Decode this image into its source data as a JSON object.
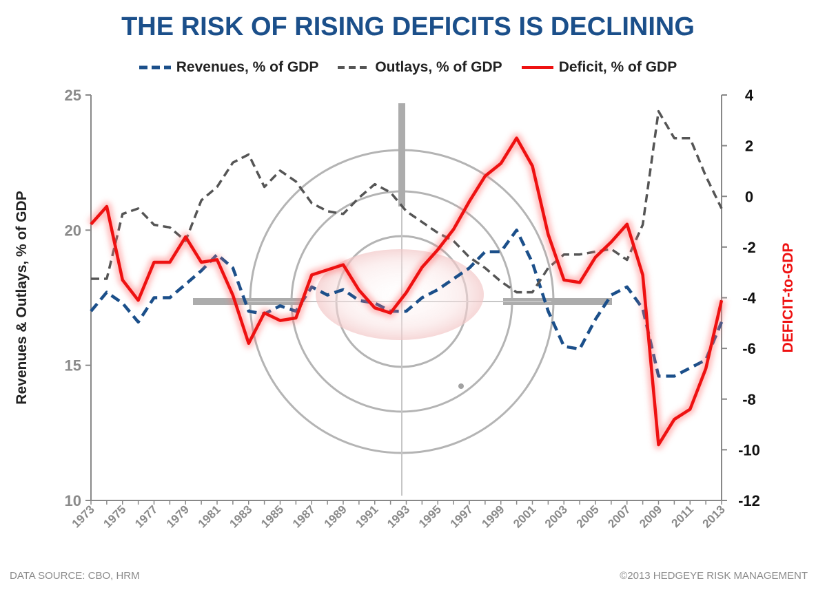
{
  "title": "THE RISK OF RISING DEFICITS IS DECLINING",
  "legend": [
    {
      "label": "Revenues, % of GDP",
      "color": "#1b4f8a",
      "dash": true
    },
    {
      "label": "Outlays, % of GDP",
      "color": "#555555",
      "dash": true
    },
    {
      "label": "Deficit, % of GDP",
      "color": "#ee1111",
      "dash": false
    }
  ],
  "footer": {
    "source": "DATA SOURCE: CBO, HRM",
    "copyright": "©2013 HEDGEYE RISK MANAGEMENT"
  },
  "chart_data": {
    "type": "line",
    "title": "THE RISK OF RISING DEFICITS IS DECLINING",
    "ylabel_left": "Revenues & Outlays, % of GDP",
    "ylabel_right": "DEFICIT-to-GDP",
    "ylim_left": [
      10,
      25
    ],
    "ylim_right": [
      -12,
      4
    ],
    "yticks_left": [
      "25",
      "20",
      "15",
      "10"
    ],
    "yticks_right": [
      "4",
      "2",
      "0",
      "-2",
      "-4",
      "-6",
      "-8",
      "-10",
      "-12"
    ],
    "x": [
      1973,
      1974,
      1975,
      1976,
      1977,
      1978,
      1979,
      1980,
      1981,
      1982,
      1983,
      1984,
      1985,
      1986,
      1987,
      1988,
      1989,
      1990,
      1991,
      1992,
      1993,
      1994,
      1995,
      1996,
      1997,
      1998,
      1999,
      2000,
      2001,
      2002,
      2003,
      2004,
      2005,
      2006,
      2007,
      2008,
      2009,
      2010,
      2011,
      2012,
      2013
    ],
    "xtick_labels": [
      "1973",
      "1975",
      "1977",
      "1979",
      "1981",
      "1983",
      "1985",
      "1987",
      "1989",
      "1991",
      "1993",
      "1995",
      "1997",
      "1999",
      "2001",
      "2003",
      "2005",
      "2007",
      "2009",
      "2011",
      "2013"
    ],
    "series": [
      {
        "name": "Revenues, % of GDP",
        "axis": "left",
        "color": "#1b4f8a",
        "values": [
          17.0,
          17.7,
          17.3,
          16.6,
          17.5,
          17.5,
          18.0,
          18.5,
          19.1,
          18.6,
          17.0,
          16.9,
          17.2,
          17.0,
          17.9,
          17.6,
          17.8,
          17.4,
          17.3,
          17.0,
          17.0,
          17.5,
          17.8,
          18.2,
          18.6,
          19.2,
          19.2,
          20.0,
          18.8,
          17.0,
          15.7,
          15.6,
          16.7,
          17.6,
          17.9,
          17.1,
          14.6,
          14.6,
          14.9,
          15.2,
          16.6
        ]
      },
      {
        "name": "Outlays, % of GDP",
        "axis": "left",
        "color": "#555555",
        "values": [
          18.2,
          18.2,
          20.6,
          20.8,
          20.2,
          20.1,
          19.6,
          21.1,
          21.6,
          22.5,
          22.8,
          21.6,
          22.2,
          21.8,
          21.0,
          20.7,
          20.6,
          21.2,
          21.7,
          21.4,
          20.7,
          20.3,
          19.9,
          19.6,
          19.0,
          18.6,
          18.1,
          17.7,
          17.7,
          18.6,
          19.1,
          19.1,
          19.2,
          19.3,
          18.9,
          20.2,
          24.4,
          23.4,
          23.4,
          22.0,
          20.8
        ]
      },
      {
        "name": "Deficit, % of GDP",
        "axis": "right",
        "color": "#ee1111",
        "values": [
          -1.1,
          -0.4,
          -3.3,
          -4.1,
          -2.6,
          -2.6,
          -1.6,
          -2.6,
          -2.5,
          -3.9,
          -5.8,
          -4.6,
          -4.9,
          -4.8,
          -3.1,
          -2.9,
          -2.7,
          -3.7,
          -4.4,
          -4.6,
          -3.8,
          -2.8,
          -2.1,
          -1.3,
          -0.2,
          0.8,
          1.3,
          2.3,
          1.2,
          -1.5,
          -3.3,
          -3.4,
          -2.4,
          -1.8,
          -1.1,
          -3.1,
          -9.8,
          -8.8,
          -8.4,
          -6.8,
          -4.1
        ]
      }
    ]
  }
}
